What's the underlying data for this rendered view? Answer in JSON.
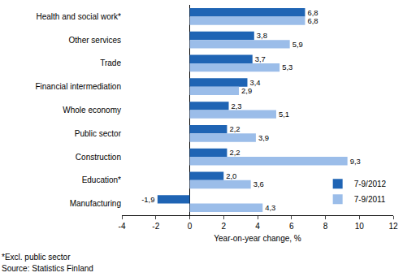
{
  "chart_data": {
    "type": "bar",
    "orientation": "horizontal",
    "categories": [
      "Health and social work*",
      "Other services",
      "Trade",
      "Financial intermediation",
      "Whole economy",
      "Public sector",
      "Construction",
      "Education*",
      "Manufacturing"
    ],
    "series": [
      {
        "name": "7-9/2012",
        "color": "#1f64b4",
        "values": [
          6.8,
          3.8,
          3.7,
          3.4,
          2.3,
          2.2,
          2.2,
          2.0,
          -1.9
        ],
        "value_labels": [
          "6,8",
          "3,8",
          "3,7",
          "3,4",
          "2,3",
          "2,2",
          "2,2",
          "2,0",
          "-1,9"
        ]
      },
      {
        "name": "7-9/2011",
        "color": "#9bbde9",
        "values": [
          6.8,
          5.9,
          5.3,
          2.9,
          5.1,
          3.9,
          9.3,
          3.6,
          4.3
        ],
        "value_labels": [
          "6,8",
          "5,9",
          "5,3",
          "2,9",
          "5,1",
          "3,9",
          "9,3",
          "3,6",
          "4,3"
        ]
      }
    ],
    "xlabel": "Year-on-year change, %",
    "xlim": [
      -4,
      12
    ],
    "xticks": [
      -4,
      -2,
      0,
      2,
      4,
      6,
      8,
      10,
      12
    ],
    "annotations": [
      "*Excl. public sector",
      "Source: Statistics Finland"
    ],
    "grid": false,
    "legend": "lower right",
    "data_labels": true
  }
}
